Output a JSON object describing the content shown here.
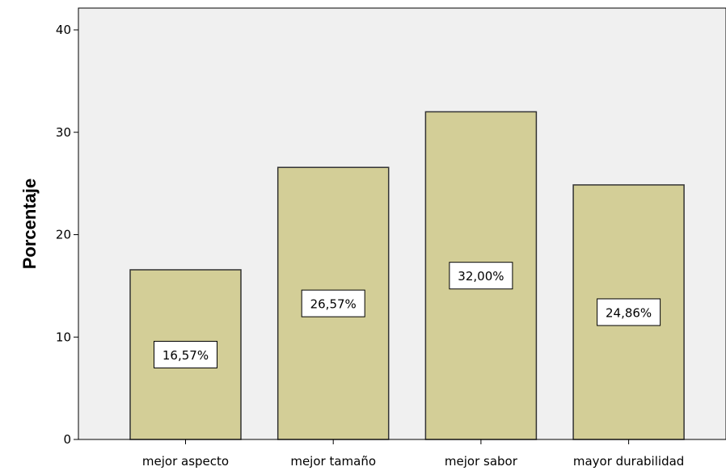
{
  "chart_data": {
    "type": "bar",
    "title": "",
    "xlabel": "",
    "ylabel": "Porcentaje",
    "categories": [
      "mejor aspecto",
      "mejor tamaño",
      "mejor sabor",
      "mayor durabilidad"
    ],
    "values": [
      16.57,
      26.57,
      32.0,
      24.86
    ],
    "data_labels": [
      "16,57%",
      "26,57%",
      "32,00%",
      "24,86%"
    ],
    "ylim": [
      0,
      40
    ],
    "yticks": [
      0,
      10,
      20,
      30,
      40
    ],
    "ytick_labels": [
      "0",
      "10",
      "20",
      "30",
      "40"
    ],
    "grid": false,
    "colors": {
      "plot_background": "#f0f0f0",
      "bar_fill": "#d3ce97",
      "bar_stroke": "#333333"
    }
  }
}
